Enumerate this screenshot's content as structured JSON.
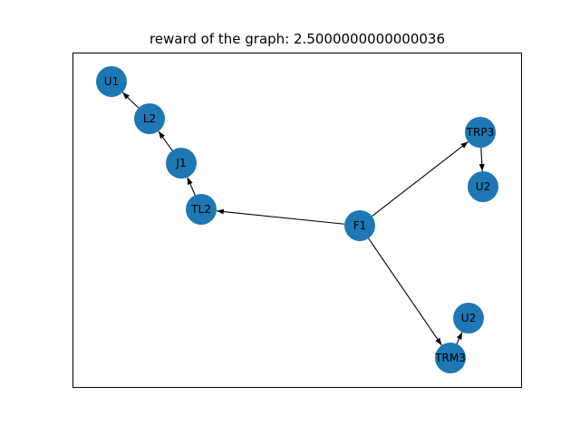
{
  "title": "reward of the graph: 2.5000000000000036",
  "node_color": "#1f77b4",
  "edge_color": "#000000",
  "nodes": [
    {
      "id": "F1",
      "label": "F1"
    },
    {
      "id": "TL2",
      "label": "TL2"
    },
    {
      "id": "J1",
      "label": "J1"
    },
    {
      "id": "L2",
      "label": "L2"
    },
    {
      "id": "U1",
      "label": "U1"
    },
    {
      "id": "TRP3",
      "label": "TRP3"
    },
    {
      "id": "U2a",
      "label": "U2"
    },
    {
      "id": "TRM3",
      "label": "TRM3"
    },
    {
      "id": "U2b",
      "label": "U2"
    }
  ],
  "edges": [
    {
      "from": "F1",
      "to": "TL2"
    },
    {
      "from": "TL2",
      "to": "J1"
    },
    {
      "from": "J1",
      "to": "L2"
    },
    {
      "from": "L2",
      "to": "U1"
    },
    {
      "from": "F1",
      "to": "TRP3"
    },
    {
      "from": "TRP3",
      "to": "U2a"
    },
    {
      "from": "F1",
      "to": "TRM3"
    },
    {
      "from": "TRM3",
      "to": "U2b"
    }
  ]
}
